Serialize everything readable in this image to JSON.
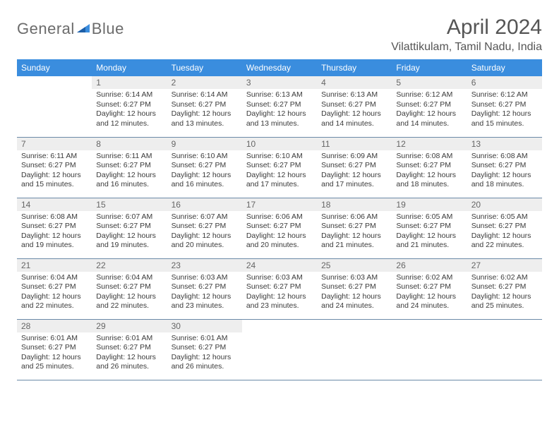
{
  "logo": {
    "gray_text": "General",
    "blue_text": "Blue",
    "gray_color": "#6b6b6b",
    "blue_color": "#3a8dde"
  },
  "title": "April 2024",
  "location": "Vilattikulam, Tamil Nadu, India",
  "colors": {
    "header_bg": "#3a8dde",
    "header_text": "#ffffff",
    "daynum_bg": "#eeeeee",
    "daynum_text": "#666666",
    "body_text": "#3a3a3a",
    "row_border": "#6b8aa8",
    "page_bg": "#ffffff"
  },
  "fonts": {
    "family": "Arial",
    "title_size_pt": 22,
    "location_size_pt": 12,
    "dayhead_size_pt": 9,
    "body_size_pt": 8
  },
  "weekdays": [
    "Sunday",
    "Monday",
    "Tuesday",
    "Wednesday",
    "Thursday",
    "Friday",
    "Saturday"
  ],
  "weeks": [
    [
      null,
      {
        "n": "1",
        "sr": "Sunrise: 6:14 AM",
        "ss": "Sunset: 6:27 PM",
        "d1": "Daylight: 12 hours",
        "d2": "and 12 minutes."
      },
      {
        "n": "2",
        "sr": "Sunrise: 6:14 AM",
        "ss": "Sunset: 6:27 PM",
        "d1": "Daylight: 12 hours",
        "d2": "and 13 minutes."
      },
      {
        "n": "3",
        "sr": "Sunrise: 6:13 AM",
        "ss": "Sunset: 6:27 PM",
        "d1": "Daylight: 12 hours",
        "d2": "and 13 minutes."
      },
      {
        "n": "4",
        "sr": "Sunrise: 6:13 AM",
        "ss": "Sunset: 6:27 PM",
        "d1": "Daylight: 12 hours",
        "d2": "and 14 minutes."
      },
      {
        "n": "5",
        "sr": "Sunrise: 6:12 AM",
        "ss": "Sunset: 6:27 PM",
        "d1": "Daylight: 12 hours",
        "d2": "and 14 minutes."
      },
      {
        "n": "6",
        "sr": "Sunrise: 6:12 AM",
        "ss": "Sunset: 6:27 PM",
        "d1": "Daylight: 12 hours",
        "d2": "and 15 minutes."
      }
    ],
    [
      {
        "n": "7",
        "sr": "Sunrise: 6:11 AM",
        "ss": "Sunset: 6:27 PM",
        "d1": "Daylight: 12 hours",
        "d2": "and 15 minutes."
      },
      {
        "n": "8",
        "sr": "Sunrise: 6:11 AM",
        "ss": "Sunset: 6:27 PM",
        "d1": "Daylight: 12 hours",
        "d2": "and 16 minutes."
      },
      {
        "n": "9",
        "sr": "Sunrise: 6:10 AM",
        "ss": "Sunset: 6:27 PM",
        "d1": "Daylight: 12 hours",
        "d2": "and 16 minutes."
      },
      {
        "n": "10",
        "sr": "Sunrise: 6:10 AM",
        "ss": "Sunset: 6:27 PM",
        "d1": "Daylight: 12 hours",
        "d2": "and 17 minutes."
      },
      {
        "n": "11",
        "sr": "Sunrise: 6:09 AM",
        "ss": "Sunset: 6:27 PM",
        "d1": "Daylight: 12 hours",
        "d2": "and 17 minutes."
      },
      {
        "n": "12",
        "sr": "Sunrise: 6:08 AM",
        "ss": "Sunset: 6:27 PM",
        "d1": "Daylight: 12 hours",
        "d2": "and 18 minutes."
      },
      {
        "n": "13",
        "sr": "Sunrise: 6:08 AM",
        "ss": "Sunset: 6:27 PM",
        "d1": "Daylight: 12 hours",
        "d2": "and 18 minutes."
      }
    ],
    [
      {
        "n": "14",
        "sr": "Sunrise: 6:08 AM",
        "ss": "Sunset: 6:27 PM",
        "d1": "Daylight: 12 hours",
        "d2": "and 19 minutes."
      },
      {
        "n": "15",
        "sr": "Sunrise: 6:07 AM",
        "ss": "Sunset: 6:27 PM",
        "d1": "Daylight: 12 hours",
        "d2": "and 19 minutes."
      },
      {
        "n": "16",
        "sr": "Sunrise: 6:07 AM",
        "ss": "Sunset: 6:27 PM",
        "d1": "Daylight: 12 hours",
        "d2": "and 20 minutes."
      },
      {
        "n": "17",
        "sr": "Sunrise: 6:06 AM",
        "ss": "Sunset: 6:27 PM",
        "d1": "Daylight: 12 hours",
        "d2": "and 20 minutes."
      },
      {
        "n": "18",
        "sr": "Sunrise: 6:06 AM",
        "ss": "Sunset: 6:27 PM",
        "d1": "Daylight: 12 hours",
        "d2": "and 21 minutes."
      },
      {
        "n": "19",
        "sr": "Sunrise: 6:05 AM",
        "ss": "Sunset: 6:27 PM",
        "d1": "Daylight: 12 hours",
        "d2": "and 21 minutes."
      },
      {
        "n": "20",
        "sr": "Sunrise: 6:05 AM",
        "ss": "Sunset: 6:27 PM",
        "d1": "Daylight: 12 hours",
        "d2": "and 22 minutes."
      }
    ],
    [
      {
        "n": "21",
        "sr": "Sunrise: 6:04 AM",
        "ss": "Sunset: 6:27 PM",
        "d1": "Daylight: 12 hours",
        "d2": "and 22 minutes."
      },
      {
        "n": "22",
        "sr": "Sunrise: 6:04 AM",
        "ss": "Sunset: 6:27 PM",
        "d1": "Daylight: 12 hours",
        "d2": "and 22 minutes."
      },
      {
        "n": "23",
        "sr": "Sunrise: 6:03 AM",
        "ss": "Sunset: 6:27 PM",
        "d1": "Daylight: 12 hours",
        "d2": "and 23 minutes."
      },
      {
        "n": "24",
        "sr": "Sunrise: 6:03 AM",
        "ss": "Sunset: 6:27 PM",
        "d1": "Daylight: 12 hours",
        "d2": "and 23 minutes."
      },
      {
        "n": "25",
        "sr": "Sunrise: 6:03 AM",
        "ss": "Sunset: 6:27 PM",
        "d1": "Daylight: 12 hours",
        "d2": "and 24 minutes."
      },
      {
        "n": "26",
        "sr": "Sunrise: 6:02 AM",
        "ss": "Sunset: 6:27 PM",
        "d1": "Daylight: 12 hours",
        "d2": "and 24 minutes."
      },
      {
        "n": "27",
        "sr": "Sunrise: 6:02 AM",
        "ss": "Sunset: 6:27 PM",
        "d1": "Daylight: 12 hours",
        "d2": "and 25 minutes."
      }
    ],
    [
      {
        "n": "28",
        "sr": "Sunrise: 6:01 AM",
        "ss": "Sunset: 6:27 PM",
        "d1": "Daylight: 12 hours",
        "d2": "and 25 minutes."
      },
      {
        "n": "29",
        "sr": "Sunrise: 6:01 AM",
        "ss": "Sunset: 6:27 PM",
        "d1": "Daylight: 12 hours",
        "d2": "and 26 minutes."
      },
      {
        "n": "30",
        "sr": "Sunrise: 6:01 AM",
        "ss": "Sunset: 6:27 PM",
        "d1": "Daylight: 12 hours",
        "d2": "and 26 minutes."
      },
      null,
      null,
      null,
      null
    ]
  ]
}
